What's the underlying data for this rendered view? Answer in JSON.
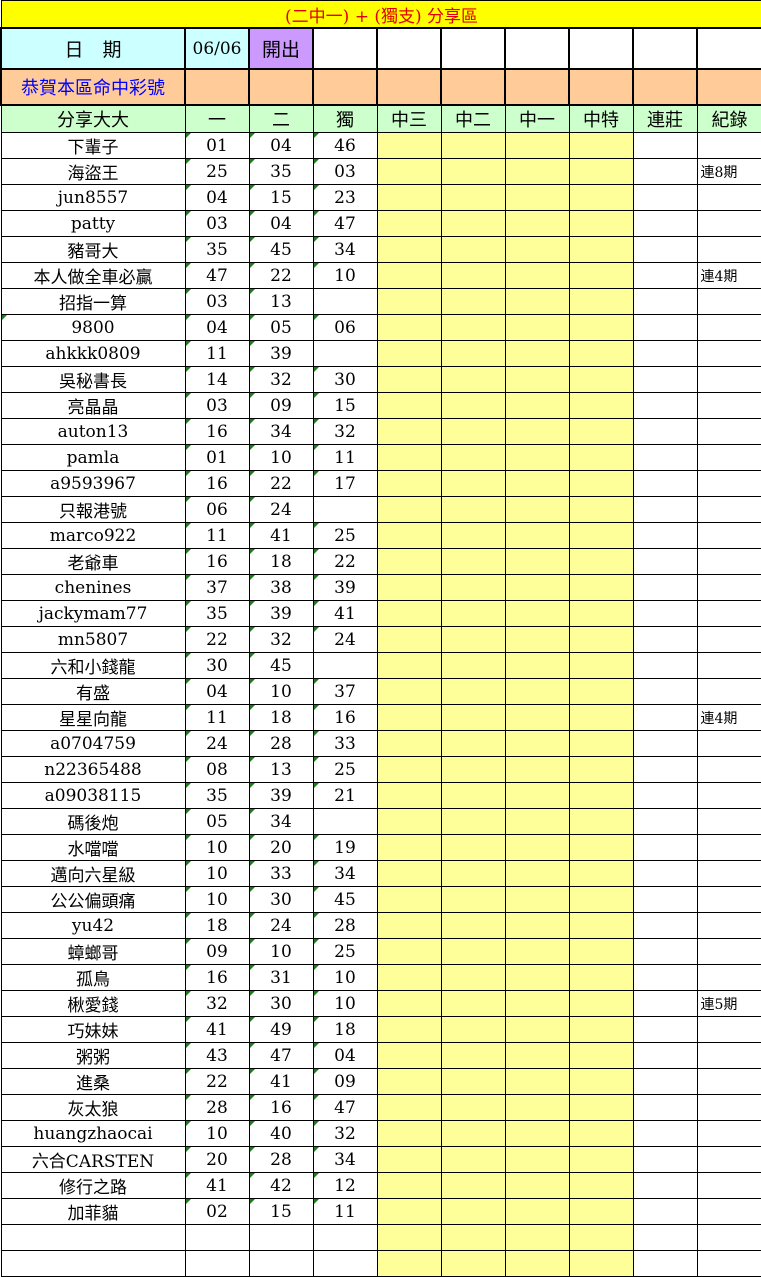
{
  "title": "(二中一) + (獨支) 分享區",
  "date_label": "日　期",
  "date_value": "06/06",
  "draw_label": "開出",
  "congrats_label": "恭賀本區命中彩號",
  "headers": [
    "分享大大",
    "一",
    "二",
    "獨",
    "中三",
    "中二",
    "中一",
    "中特",
    "連莊",
    "紀錄"
  ],
  "colors": {
    "title_bg": "#ffff00",
    "title_text": "#e00000",
    "date_bg": "#ccffff",
    "draw_bg": "#cc99ff",
    "congrats_bg": "#ffcc99",
    "congrats_text": "#0000ff",
    "header_bg": "#ccffcc",
    "hit_bg": "#ffff99"
  },
  "rows": [
    {
      "name": "下輩子",
      "n1": "01",
      "n2": "04",
      "n3": "46",
      "rec": ""
    },
    {
      "name": "海盜王",
      "n1": "25",
      "n2": "35",
      "n3": "03",
      "rec": "連8期"
    },
    {
      "name": "jun8557",
      "n1": "04",
      "n2": "15",
      "n3": "23",
      "rec": ""
    },
    {
      "name": "patty",
      "n1": "03",
      "n2": "04",
      "n3": "47",
      "rec": ""
    },
    {
      "name": "豬哥大",
      "n1": "35",
      "n2": "45",
      "n3": "34",
      "rec": ""
    },
    {
      "name": "本人做全車必贏",
      "n1": "47",
      "n2": "22",
      "n3": "10",
      "rec": "連4期"
    },
    {
      "name": "招指一算",
      "n1": "03",
      "n2": "13",
      "n3": "",
      "rec": ""
    },
    {
      "name": "9800",
      "n1": "04",
      "n2": "05",
      "n3": "06",
      "rec": ""
    },
    {
      "name": "ahkkk0809",
      "n1": "11",
      "n2": "39",
      "n3": "",
      "rec": ""
    },
    {
      "name": "吳秘書長",
      "n1": "14",
      "n2": "32",
      "n3": "30",
      "rec": ""
    },
    {
      "name": "亮晶晶",
      "n1": "03",
      "n2": "09",
      "n3": "15",
      "rec": ""
    },
    {
      "name": "auton13",
      "n1": "16",
      "n2": "34",
      "n3": "32",
      "rec": ""
    },
    {
      "name": "pamla",
      "n1": "01",
      "n2": "10",
      "n3": "11",
      "rec": ""
    },
    {
      "name": "a9593967",
      "n1": "16",
      "n2": "22",
      "n3": "17",
      "rec": ""
    },
    {
      "name": "只報港號",
      "n1": "06",
      "n2": "24",
      "n3": "",
      "rec": ""
    },
    {
      "name": "marco922",
      "n1": "11",
      "n2": "41",
      "n3": "25",
      "rec": ""
    },
    {
      "name": "老爺車",
      "n1": "16",
      "n2": "18",
      "n3": "22",
      "rec": ""
    },
    {
      "name": "chenines",
      "n1": "37",
      "n2": "38",
      "n3": "39",
      "rec": ""
    },
    {
      "name": "jackymam77",
      "n1": "35",
      "n2": "39",
      "n3": "41",
      "rec": ""
    },
    {
      "name": "mn5807",
      "n1": "22",
      "n2": "32",
      "n3": "24",
      "rec": ""
    },
    {
      "name": "六和小錢龍",
      "n1": "30",
      "n2": "45",
      "n3": "",
      "rec": ""
    },
    {
      "name": "有盛",
      "n1": "04",
      "n2": "10",
      "n3": "37",
      "rec": ""
    },
    {
      "name": "星星向龍",
      "n1": "11",
      "n2": "18",
      "n3": "16",
      "rec": "連4期"
    },
    {
      "name": "a0704759",
      "n1": "24",
      "n2": "28",
      "n3": "33",
      "rec": ""
    },
    {
      "name": "n22365488",
      "n1": "08",
      "n2": "13",
      "n3": "25",
      "rec": ""
    },
    {
      "name": "a09038115",
      "n1": "35",
      "n2": "39",
      "n3": "21",
      "rec": ""
    },
    {
      "name": "碼後炮",
      "n1": "05",
      "n2": "34",
      "n3": "",
      "rec": ""
    },
    {
      "name": "水噹噹",
      "n1": "10",
      "n2": "20",
      "n3": "19",
      "rec": ""
    },
    {
      "name": "邁向六星級",
      "n1": "10",
      "n2": "33",
      "n3": "34",
      "rec": ""
    },
    {
      "name": "公公偏頭痛",
      "n1": "10",
      "n2": "30",
      "n3": "45",
      "rec": ""
    },
    {
      "name": "yu42",
      "n1": "18",
      "n2": "24",
      "n3": "28",
      "rec": ""
    },
    {
      "name": "蟑螂哥",
      "n1": "09",
      "n2": "10",
      "n3": "25",
      "rec": ""
    },
    {
      "name": "孤鳥",
      "n1": "16",
      "n2": "31",
      "n3": "10",
      "rec": ""
    },
    {
      "name": "楸愛錢",
      "n1": "32",
      "n2": "30",
      "n3": "10",
      "rec": "連5期"
    },
    {
      "name": "巧妹妹",
      "n1": "41",
      "n2": "49",
      "n3": "18",
      "rec": ""
    },
    {
      "name": "粥粥",
      "n1": "43",
      "n2": "47",
      "n3": "04",
      "rec": ""
    },
    {
      "name": "進桑",
      "n1": "22",
      "n2": "41",
      "n3": "09",
      "rec": ""
    },
    {
      "name": "灰太狼",
      "n1": "28",
      "n2": "16",
      "n3": "47",
      "rec": ""
    },
    {
      "name": "huangzhaocai",
      "n1": "10",
      "n2": "40",
      "n3": "32",
      "rec": ""
    },
    {
      "name": "六合CARSTEN",
      "n1": "20",
      "n2": "28",
      "n3": "34",
      "rec": ""
    },
    {
      "name": "修行之路",
      "n1": "41",
      "n2": "42",
      "n3": "12",
      "rec": ""
    },
    {
      "name": "加菲貓",
      "n1": "02",
      "n2": "15",
      "n3": "11",
      "rec": ""
    },
    {
      "name": "",
      "n1": "",
      "n2": "",
      "n3": "",
      "rec": ""
    },
    {
      "name": "",
      "n1": "",
      "n2": "",
      "n3": "",
      "rec": ""
    }
  ]
}
